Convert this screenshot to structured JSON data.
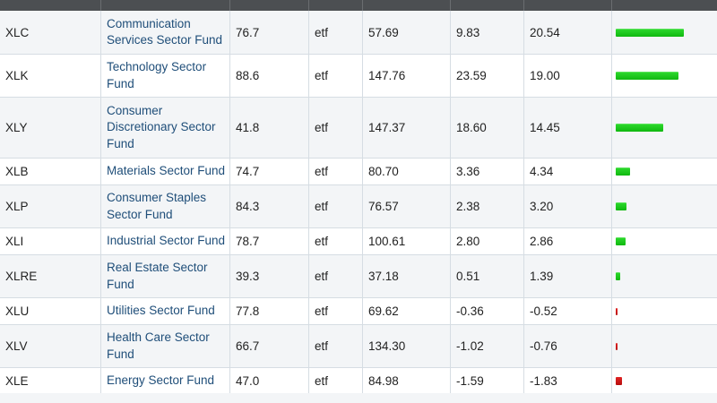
{
  "table": {
    "rows": [
      {
        "symbol": "XLC",
        "name_lines": [
          "Communication",
          "Services Sector Fund"
        ],
        "score": "76.7",
        "type": "etf",
        "price": "57.69",
        "change": "9.83",
        "pct": "20.54",
        "pct_value": 20.54,
        "bar_color": "#14c414"
      },
      {
        "symbol": "XLK",
        "name_lines": [
          "Technology Sector",
          "Fund"
        ],
        "score": "88.6",
        "type": "etf",
        "price": "147.76",
        "change": "23.59",
        "pct": "19.00",
        "pct_value": 19.0,
        "bar_color": "#14c414"
      },
      {
        "symbol": "XLY",
        "name_lines": [
          "Consumer",
          "Discretionary Sector",
          "Fund"
        ],
        "score": "41.8",
        "type": "etf",
        "price": "147.37",
        "change": "18.60",
        "pct": "14.45",
        "pct_value": 14.45,
        "bar_color": "#14c414"
      },
      {
        "symbol": "XLB",
        "name_lines": [
          "Materials Sector Fund"
        ],
        "score": "74.7",
        "type": "etf",
        "price": "80.70",
        "change": "3.36",
        "pct": "4.34",
        "pct_value": 4.34,
        "bar_color": "#14c414"
      },
      {
        "symbol": "XLP",
        "name_lines": [
          "Consumer Staples",
          "Sector Fund"
        ],
        "score": "84.3",
        "type": "etf",
        "price": "76.57",
        "change": "2.38",
        "pct": "3.20",
        "pct_value": 3.2,
        "bar_color": "#14c414"
      },
      {
        "symbol": "XLI",
        "name_lines": [
          "Industrial Sector Fund"
        ],
        "score": "78.7",
        "type": "etf",
        "price": "100.61",
        "change": "2.80",
        "pct": "2.86",
        "pct_value": 2.86,
        "bar_color": "#14c414"
      },
      {
        "symbol": "XLRE",
        "name_lines": [
          "Real Estate Sector",
          "Fund"
        ],
        "score": "39.3",
        "type": "etf",
        "price": "37.18",
        "change": "0.51",
        "pct": "1.39",
        "pct_value": 1.39,
        "bar_color": "#14c414"
      },
      {
        "symbol": "XLU",
        "name_lines": [
          "Utilities Sector Fund"
        ],
        "score": "77.8",
        "type": "etf",
        "price": "69.62",
        "change": "-0.36",
        "pct": "-0.52",
        "pct_value": -0.52,
        "bar_color": "#cc1616"
      },
      {
        "symbol": "XLV",
        "name_lines": [
          "Health Care Sector",
          "Fund"
        ],
        "score": "66.7",
        "type": "etf",
        "price": "134.30",
        "change": "-1.02",
        "pct": "-0.76",
        "pct_value": -0.76,
        "bar_color": "#cc1616"
      },
      {
        "symbol": "XLE",
        "name_lines": [
          "Energy Sector Fund"
        ],
        "score": "47.0",
        "type": "etf",
        "price": "84.98",
        "change": "-1.59",
        "pct": "-1.83",
        "pct_value": -1.83,
        "bar_color": "#cc1616"
      }
    ]
  }
}
